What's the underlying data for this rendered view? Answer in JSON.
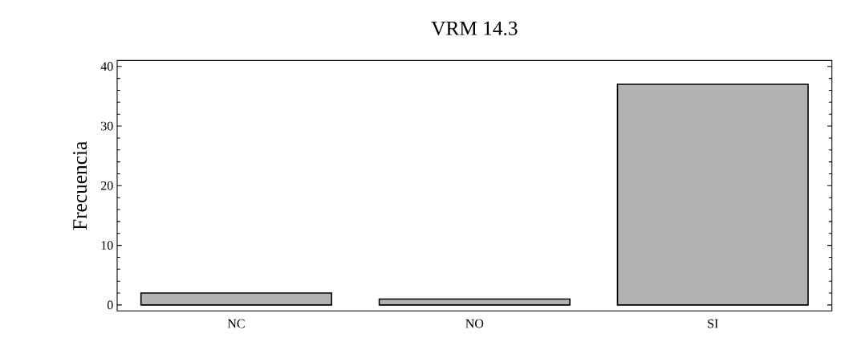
{
  "chart_data": {
    "type": "bar",
    "title": "VRM 14.3",
    "ylabel": "Frecuencia",
    "categories": [
      "NC",
      "NO",
      "SI"
    ],
    "values": [
      2,
      1,
      37
    ],
    "color": "#000000",
    "ylim": [
      -1,
      41
    ],
    "yticks": [
      0,
      10,
      20,
      30,
      40
    ],
    "grid": false
  }
}
